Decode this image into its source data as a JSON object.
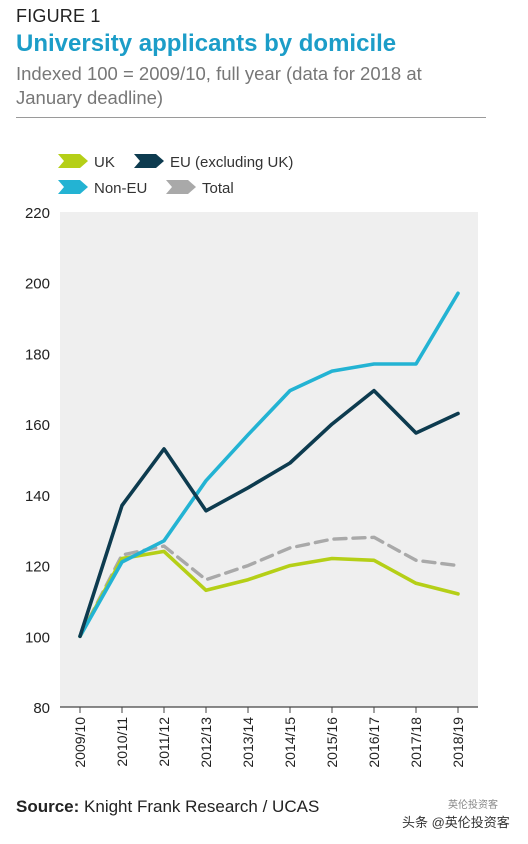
{
  "figure_label": "FIGURE 1",
  "title": "University applicants by domicile",
  "subtitle": "Indexed 100 = 2009/10, full year (data for 2018 at January deadline)",
  "source_label": "Source:",
  "source_text": "Knight Frank Research / UCAS",
  "watermark": "头条 @英伦投资客",
  "watermark_small": "英伦投资客",
  "colors": {
    "uk": "#b5cf17",
    "eu": "#0d3b4f",
    "noneu": "#23b3d3",
    "total": "#a9a9a9",
    "plot_bg": "#efefef"
  },
  "chart_data": {
    "type": "line",
    "categories": [
      "2009/10",
      "2010/11",
      "2011/12",
      "2012/13",
      "2013/14",
      "2014/15",
      "2015/16",
      "2016/17",
      "2017/18",
      "2018/19"
    ],
    "ylim": [
      80,
      220
    ],
    "yticks": [
      80,
      100,
      120,
      140,
      160,
      180,
      200,
      220
    ],
    "legend_position": "top-left",
    "series": [
      {
        "name": "UK",
        "key": "uk",
        "dashed": false,
        "values": [
          100,
          122,
          124,
          113,
          116,
          120,
          122,
          121.5,
          115,
          112
        ]
      },
      {
        "name": "EU (excluding UK)",
        "key": "eu",
        "dashed": false,
        "values": [
          100,
          137,
          153,
          135.5,
          142,
          149,
          160,
          169.5,
          157.5,
          163
        ]
      },
      {
        "name": "Non-EU",
        "key": "noneu",
        "dashed": false,
        "values": [
          100,
          121,
          127,
          144,
          157,
          169.5,
          175,
          177,
          177,
          197
        ]
      },
      {
        "name": "Total",
        "key": "total",
        "dashed": true,
        "values": [
          100,
          123,
          125.5,
          116,
          120,
          125,
          127.5,
          128,
          121.5,
          120
        ]
      }
    ]
  }
}
